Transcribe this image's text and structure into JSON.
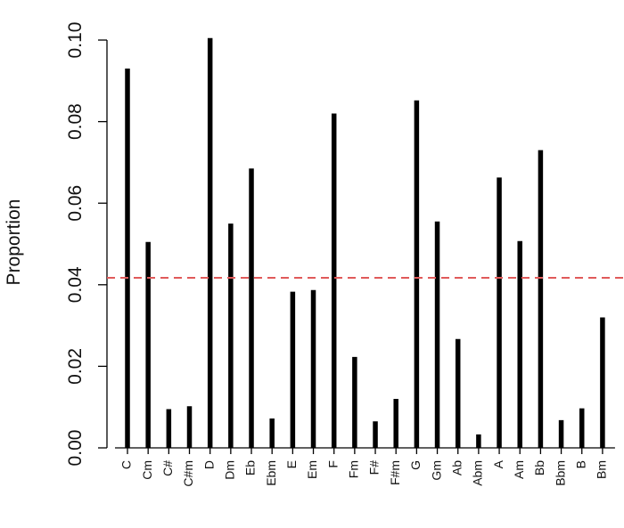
{
  "chart_data": {
    "type": "bar",
    "title": "",
    "xlabel": "",
    "ylabel": "Proportion",
    "ylim": [
      0,
      0.1
    ],
    "yticks": [
      "0.00",
      "0.02",
      "0.04",
      "0.06",
      "0.08",
      "0.10"
    ],
    "grid": false,
    "bar_color": "#000000",
    "reference_line": {
      "value": 0.0417,
      "color": "#e05a5a",
      "style": "dashed"
    },
    "categories": [
      "C",
      "Cm",
      "C#",
      "C#m",
      "D",
      "Dm",
      "Eb",
      "Ebm",
      "E",
      "Em",
      "F",
      "Fm",
      "F#",
      "F#m",
      "G",
      "Gm",
      "Ab",
      "Abm",
      "A",
      "Am",
      "Bb",
      "Bbm",
      "B",
      "Bm"
    ],
    "values": [
      0.093,
      0.0505,
      0.0095,
      0.0102,
      0.1005,
      0.055,
      0.0685,
      0.0072,
      0.0383,
      0.0387,
      0.082,
      0.0223,
      0.0065,
      0.012,
      0.0852,
      0.0555,
      0.0267,
      0.0033,
      0.0663,
      0.0507,
      0.073,
      0.0068,
      0.0097,
      0.032
    ]
  }
}
